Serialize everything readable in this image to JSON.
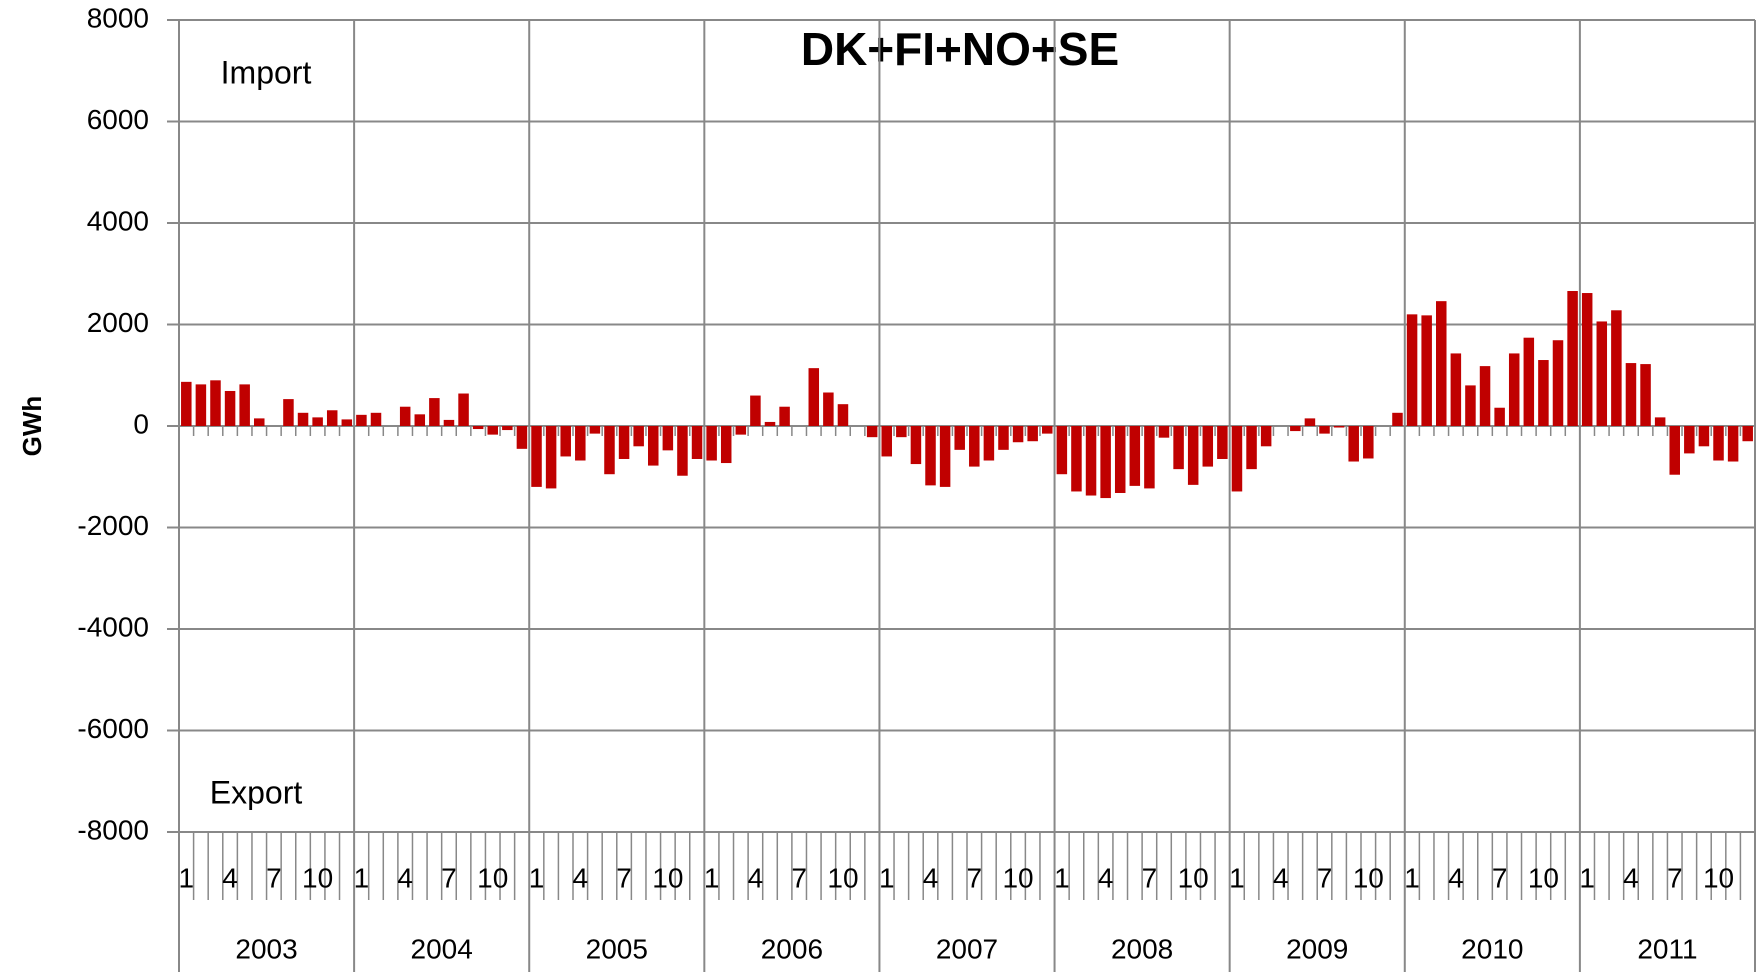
{
  "chart_data": {
    "type": "bar",
    "title": "DK+FI+NO+SE",
    "y_label": "GWh",
    "annotations": [
      "Import",
      "Export"
    ],
    "categories": [
      "1",
      null,
      null,
      "4",
      null,
      null,
      "7",
      null,
      null,
      "10",
      null,
      null,
      "1",
      null,
      null,
      "4",
      null,
      null,
      "7",
      null,
      null,
      "10",
      null,
      null,
      "1",
      null,
      null,
      "4",
      null,
      null,
      "7",
      null,
      null,
      "10",
      null,
      null,
      "1",
      null,
      null,
      "4",
      null,
      null,
      "7",
      null,
      null,
      "10",
      null,
      null,
      "1",
      null,
      null,
      "4",
      null,
      null,
      "7",
      null,
      null,
      "10",
      null,
      null,
      "1",
      null,
      null,
      "4",
      null,
      null,
      "7",
      null,
      null,
      "10",
      null,
      null,
      "1",
      null,
      null,
      "4",
      null,
      null,
      "7",
      null,
      null,
      "10",
      null,
      null,
      "1",
      null,
      null,
      "4",
      null,
      null,
      "7",
      null,
      null,
      "10",
      null,
      null,
      "1",
      null,
      null,
      "4",
      null,
      null,
      "7",
      null,
      null,
      "10",
      null,
      null
    ],
    "groups": [
      "2003",
      "2004",
      "2005",
      "2006",
      "2007",
      "2008",
      "2009",
      "2010",
      "2011"
    ],
    "values": [
      870,
      820,
      900,
      690,
      820,
      150,
      0,
      530,
      260,
      170,
      310,
      130,
      220,
      260,
      0,
      380,
      230,
      550,
      120,
      640,
      -60,
      -170,
      -80,
      -450,
      -1200,
      -1230,
      -600,
      -680,
      -150,
      -950,
      -650,
      -400,
      -780,
      -480,
      -980,
      -650,
      -680,
      -730,
      -170,
      600,
      80,
      380,
      0,
      1140,
      660,
      430,
      0,
      -220,
      -600,
      -220,
      -750,
      -1170,
      -1200,
      -470,
      -800,
      -680,
      -470,
      -320,
      -300,
      -150,
      -950,
      -1290,
      -1370,
      -1420,
      -1320,
      -1180,
      -1230,
      -230,
      -850,
      -1160,
      -800,
      -650,
      -1290,
      -850,
      -400,
      0,
      -100,
      150,
      -150,
      -30,
      -700,
      -640,
      0,
      260,
      2200,
      2180,
      2460,
      1430,
      800,
      1180,
      360,
      1430,
      1740,
      1300,
      1690,
      2660,
      2620,
      2060,
      2280,
      1240,
      1220,
      170,
      -960,
      -540,
      -400,
      -680,
      -700,
      -300
    ],
    "color": "#c00000",
    "ylim": [
      -8000,
      8000
    ],
    "yticks": [
      -8000,
      -6000,
      -4000,
      -2000,
      0,
      2000,
      4000,
      6000,
      8000
    ],
    "grid": true
  }
}
